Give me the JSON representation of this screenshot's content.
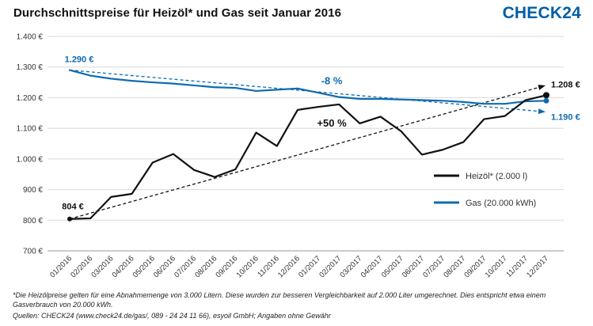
{
  "header": {
    "title": "Durchschnittspreise für Heizöl* und Gas seit Januar 2016",
    "logo": "CHECK24"
  },
  "chart_data": {
    "type": "line",
    "categories": [
      "01/2016",
      "02/2016",
      "03/2016",
      "04/2016",
      "05/2016",
      "06/2016",
      "07/2016",
      "08/2016",
      "09/2016",
      "10/2016",
      "11/2016",
      "12/2016",
      "01/2017",
      "02/2017",
      "03/2017",
      "04/2017",
      "05/2017",
      "06/2017",
      "07/2017",
      "08/2017",
      "09/2017",
      "10/2017",
      "11/2017",
      "12/2017"
    ],
    "series": [
      {
        "name": "Heizöl* (2.000 l)",
        "color": "#111111",
        "values": [
          804,
          806,
          876,
          886,
          988,
          1016,
          964,
          941,
          966,
          1086,
          1042,
          1160,
          1170,
          1178,
          1116,
          1138,
          1090,
          1014,
          1030,
          1055,
          1130,
          1140,
          1192,
          1208
        ]
      },
      {
        "name": "Gas (20.000 kWh)",
        "color": "#0f6bb0",
        "values": [
          1290,
          1272,
          1262,
          1255,
          1250,
          1246,
          1240,
          1234,
          1232,
          1222,
          1226,
          1230,
          1216,
          1202,
          1196,
          1196,
          1194,
          1192,
          1190,
          1186,
          1180,
          1180,
          1188,
          1190
        ]
      }
    ],
    "ylim": [
      700,
      1400
    ],
    "ytick_step": 100,
    "currency_suffix": " €",
    "grid": true,
    "legend_position": "inside-right",
    "annotations": {
      "start_gas_label": "1.290 €",
      "start_oil_label": "804 €",
      "end_oil_label": "1.208 €",
      "end_gas_label": "1.190 €",
      "gas_change": "-8 %",
      "oil_change": "+50 %"
    }
  },
  "footnotes": {
    "note": "*Die Heizölpreise gelten für eine Abnahmemenge von 3.000 Litern. Diese wurden zur besseren Vergleichbarkeit auf 2.000 Liter umgerechnet. Dies entspricht etwa einem Gasverbrauch von 20.000 kWh.",
    "sources": "Quellen: CHECK24 (www.check24.de/gas/, 089 - 24 24 11 66), esyoil GmbH; Angaben ohne Gewähr"
  }
}
